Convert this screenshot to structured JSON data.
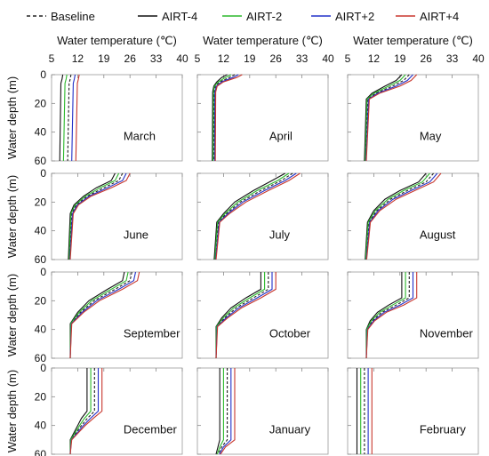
{
  "legend": [
    {
      "name": "Baseline",
      "color": "#222222",
      "dash": true
    },
    {
      "name": "AIRT-4",
      "color": "#111111",
      "dash": false
    },
    {
      "name": "AIRT-2",
      "color": "#2cb82c",
      "dash": false
    },
    {
      "name": "AIRT+2",
      "color": "#2230c8",
      "dash": false
    },
    {
      "name": "AIRT+4",
      "color": "#c8372d",
      "dash": false
    }
  ],
  "xlabel": "Water temperature (℃)",
  "ylabel": "Water depth (m)",
  "chart_data": {
    "type": "line",
    "layout": "4x3 panels of vertical temperature profiles",
    "xlim": [
      5,
      40
    ],
    "ylim": [
      60,
      0
    ],
    "xticks": [
      "5",
      "12",
      "19",
      "26",
      "33",
      "40"
    ],
    "yticks": [
      "0",
      "20",
      "40",
      "60"
    ],
    "grid": false,
    "legend_position": "top",
    "series_order": [
      "Baseline",
      "AIRT-4",
      "AIRT-2",
      "AIRT+2",
      "AIRT+4"
    ],
    "panels": [
      {
        "month": "March",
        "depths": [
          0,
          3,
          6,
          60
        ],
        "temps": {
          "AIRT-4": [
            8,
            7.8,
            7.5,
            7.2
          ],
          "AIRT-2": [
            9.1,
            8.9,
            8.6,
            8.2
          ],
          "Baseline": [
            10.2,
            10,
            9.7,
            9.3
          ],
          "AIRT+2": [
            11.3,
            11.1,
            10.8,
            10.4
          ],
          "AIRT+4": [
            12.4,
            12.2,
            11.9,
            11.5
          ]
        }
      },
      {
        "month": "April",
        "depths": [
          0,
          2,
          5,
          8,
          12,
          60
        ],
        "temps": {
          "AIRT-4": [
            13,
            11.5,
            10.2,
            9.4,
            9.1,
            9
          ],
          "AIRT-2": [
            14,
            12.5,
            10.6,
            9.6,
            9.3,
            9.2
          ],
          "Baseline": [
            15,
            13.5,
            11,
            9.8,
            9.5,
            9.4
          ],
          "AIRT+2": [
            16,
            14.5,
            11.5,
            10.1,
            9.7,
            9.6
          ],
          "AIRT+4": [
            17,
            15.5,
            12,
            10.3,
            9.9,
            9.8
          ]
        }
      },
      {
        "month": "May",
        "depths": [
          0,
          4,
          8,
          13,
          17,
          60
        ],
        "temps": {
          "AIRT-4": [
            19.5,
            18,
            15,
            11.5,
            10,
            9.5
          ],
          "AIRT-2": [
            20.5,
            19,
            16,
            12,
            10.2,
            9.7
          ],
          "Baseline": [
            21.5,
            20,
            17,
            12.5,
            10.4,
            9.8
          ],
          "AIRT+2": [
            22.5,
            21,
            18,
            13,
            10.6,
            9.9
          ],
          "AIRT+4": [
            23.5,
            22,
            19,
            13.5,
            10.8,
            10
          ]
        }
      },
      {
        "month": "June",
        "depths": [
          0,
          5,
          10,
          16,
          22,
          28,
          60
        ],
        "temps": {
          "AIRT-4": [
            22,
            21,
            17,
            13.5,
            11,
            10,
            9.5
          ],
          "AIRT-2": [
            23,
            22,
            18,
            14,
            11.3,
            10.2,
            9.7
          ],
          "Baseline": [
            24,
            23,
            19,
            14.5,
            11.6,
            10.4,
            9.8
          ],
          "AIRT+2": [
            25,
            24,
            20,
            15,
            11.9,
            10.6,
            9.9
          ],
          "AIRT+4": [
            26,
            25,
            21,
            15.5,
            12.2,
            10.8,
            10
          ]
        }
      },
      {
        "month": "July",
        "depths": [
          0,
          5,
          12,
          20,
          28,
          34,
          60
        ],
        "temps": {
          "AIRT-4": [
            28.5,
            25,
            20,
            15,
            12,
            10.2,
            9.5
          ],
          "AIRT-2": [
            29.5,
            26.5,
            21,
            15.8,
            12.4,
            10.4,
            9.7
          ],
          "Baseline": [
            30.5,
            27.5,
            22,
            16.5,
            12.8,
            10.6,
            9.8
          ],
          "AIRT+2": [
            31.5,
            28.5,
            23,
            17.2,
            13.2,
            10.8,
            9.9
          ],
          "AIRT+4": [
            32.5,
            29.5,
            24,
            18,
            13.6,
            11,
            10
          ]
        }
      },
      {
        "month": "August",
        "depths": [
          0,
          6,
          12,
          18,
          26,
          34,
          60
        ],
        "temps": {
          "AIRT-4": [
            26,
            24,
            19,
            15,
            12,
            10.3,
            9.7
          ],
          "AIRT-2": [
            27,
            25,
            20,
            15.8,
            12.4,
            10.5,
            9.8
          ],
          "Baseline": [
            28,
            26,
            21,
            16.5,
            12.8,
            10.7,
            9.9
          ],
          "AIRT+2": [
            29,
            27,
            22,
            17.2,
            13.2,
            10.9,
            10
          ],
          "AIRT+4": [
            30,
            28,
            23,
            18,
            13.6,
            11.1,
            10.1
          ]
        }
      },
      {
        "month": "September",
        "depths": [
          0,
          6,
          12,
          20,
          28,
          36,
          60
        ],
        "temps": {
          "AIRT-4": [
            24.5,
            24,
            20,
            15,
            12,
            10,
            10
          ],
          "AIRT-2": [
            25.5,
            25,
            21,
            15.7,
            12.4,
            10.1,
            10
          ],
          "Baseline": [
            26.5,
            26,
            22,
            16.4,
            12.8,
            10.2,
            10
          ],
          "AIRT+2": [
            27.5,
            27,
            23,
            17.1,
            13.2,
            10.3,
            10
          ],
          "AIRT+4": [
            28.5,
            28,
            24,
            17.8,
            13.6,
            10.4,
            10
          ]
        }
      },
      {
        "month": "October",
        "depths": [
          0,
          12,
          18,
          25,
          32,
          38,
          60
        ],
        "temps": {
          "AIRT-4": [
            22,
            22,
            18,
            14,
            11.5,
            10,
            10
          ],
          "AIRT-2": [
            23,
            23,
            19,
            14.7,
            11.9,
            10.1,
            10
          ],
          "Baseline": [
            24,
            24,
            20,
            15.4,
            12.3,
            10.2,
            10
          ],
          "AIRT+2": [
            25,
            25,
            21,
            16.1,
            12.7,
            10.3,
            10
          ],
          "AIRT+4": [
            26,
            26,
            22,
            16.8,
            13.1,
            10.4,
            10
          ]
        }
      },
      {
        "month": "November",
        "depths": [
          0,
          18,
          23,
          28,
          34,
          40,
          60
        ],
        "temps": {
          "AIRT-4": [
            19.5,
            19.5,
            16,
            13,
            11,
            10,
            10
          ],
          "AIRT-2": [
            20.5,
            20.5,
            17,
            13.6,
            11.3,
            10.1,
            10
          ],
          "Baseline": [
            21.5,
            21.5,
            18,
            14.2,
            11.6,
            10.2,
            10
          ],
          "AIRT+2": [
            22.5,
            22.5,
            19,
            14.8,
            11.9,
            10.3,
            10
          ],
          "AIRT+4": [
            23.5,
            23.5,
            20,
            15.4,
            12.2,
            10.4,
            10
          ]
        }
      },
      {
        "month": "December",
        "depths": [
          0,
          30,
          35,
          40,
          45,
          50,
          60
        ],
        "temps": {
          "AIRT-4": [
            14.5,
            14.5,
            13,
            12,
            11,
            10,
            10
          ],
          "AIRT-2": [
            15.5,
            15.5,
            13.8,
            12.5,
            11.3,
            10.1,
            10
          ],
          "Baseline": [
            16.5,
            16.5,
            14.6,
            13,
            11.6,
            10.2,
            10
          ],
          "AIRT+2": [
            17.5,
            17.5,
            15.4,
            13.5,
            11.9,
            10.3,
            10
          ],
          "AIRT+4": [
            18.5,
            18.5,
            16.2,
            14,
            12.2,
            10.4,
            10
          ]
        }
      },
      {
        "month": "January",
        "depths": [
          0,
          50,
          55,
          60
        ],
        "temps": {
          "AIRT-4": [
            11,
            11,
            10.5,
            10
          ],
          "AIRT-2": [
            12,
            12,
            11,
            10.3
          ],
          "Baseline": [
            13,
            13,
            11.5,
            10.6
          ],
          "AIRT+2": [
            14,
            14,
            12,
            10.9
          ],
          "AIRT+4": [
            15,
            15,
            12.5,
            11.2
          ]
        }
      },
      {
        "month": "February",
        "depths": [
          0,
          60
        ],
        "temps": {
          "AIRT-4": [
            7.5,
            7.5
          ],
          "AIRT-2": [
            8.5,
            8.5
          ],
          "Baseline": [
            9.5,
            9.5
          ],
          "AIRT+2": [
            10.5,
            10.5
          ],
          "AIRT+4": [
            11.5,
            11.5
          ]
        }
      }
    ]
  }
}
